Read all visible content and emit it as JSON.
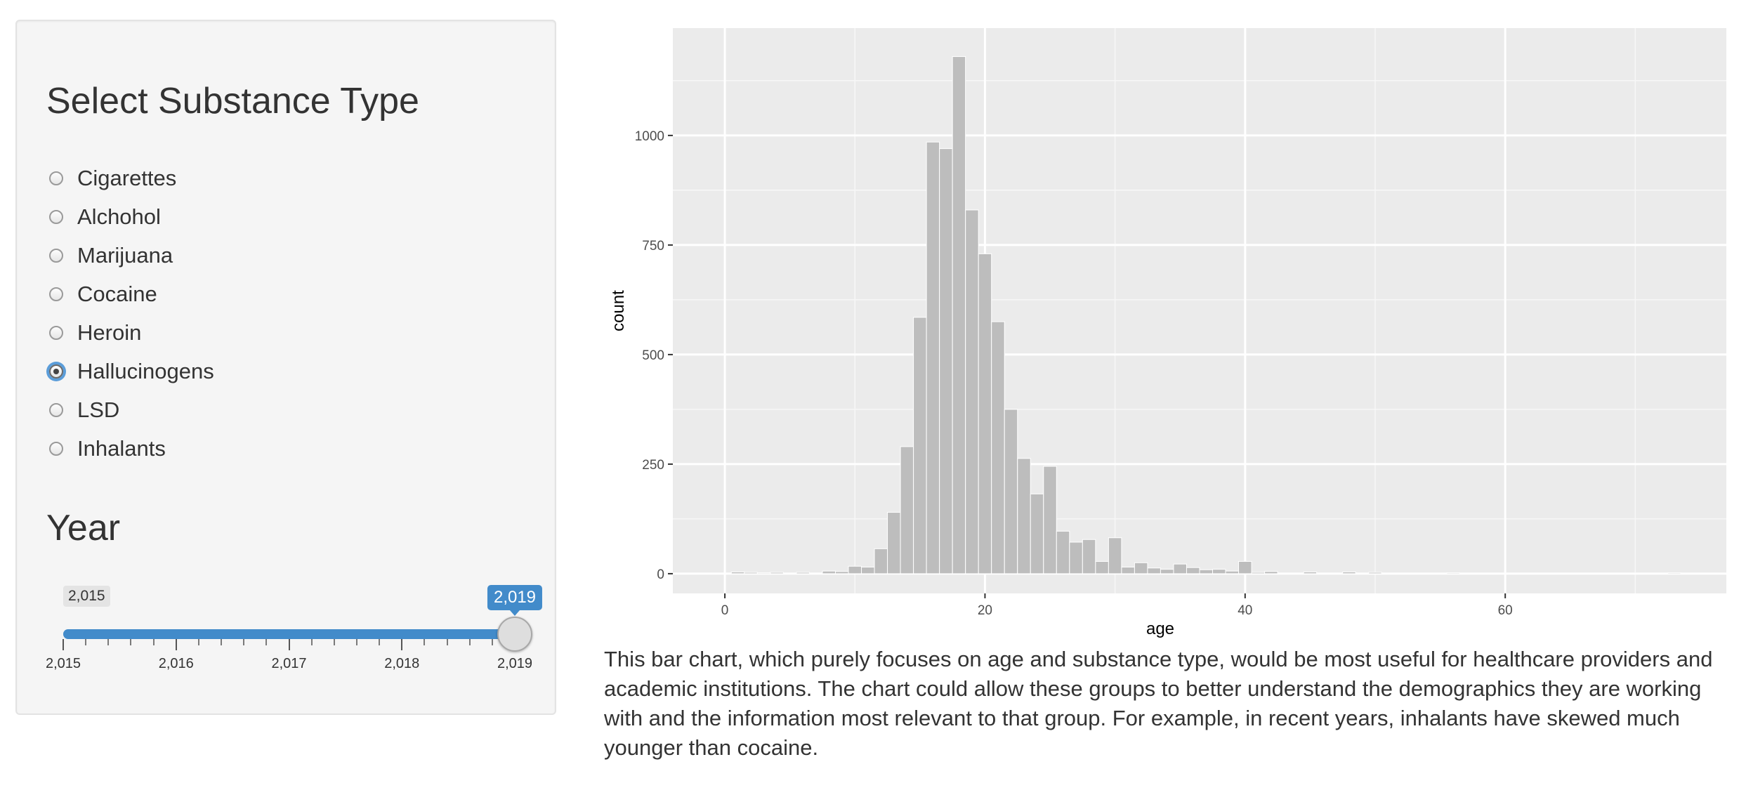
{
  "sidebar": {
    "radio_title": "Select Substance Type",
    "options": [
      {
        "label": "Cigarettes",
        "selected": false
      },
      {
        "label": "Alchohol",
        "selected": false
      },
      {
        "label": "Marijuana",
        "selected": false
      },
      {
        "label": "Cocaine",
        "selected": false
      },
      {
        "label": "Heroin",
        "selected": false
      },
      {
        "label": "Hallucinogens",
        "selected": true
      },
      {
        "label": "LSD",
        "selected": false
      },
      {
        "label": "Inhalants",
        "selected": false
      }
    ],
    "slider": {
      "title": "Year",
      "min": 2015,
      "max": 2019,
      "value": 2019,
      "min_label": "2,015",
      "value_label": "2,019",
      "tick_labels": [
        "2,015",
        "2,016",
        "2,017",
        "2,018",
        "2,019"
      ],
      "accent_color": "#428bca"
    }
  },
  "chart_data": {
    "type": "bar",
    "title": "",
    "xlabel": "age",
    "ylabel": "count",
    "xlim": [
      -4,
      77
    ],
    "ylim": [
      -45,
      1245
    ],
    "x_ticks": [
      0,
      20,
      40,
      60
    ],
    "y_ticks": [
      0,
      250,
      500,
      750,
      1000
    ],
    "x_tick_labels": [
      "0",
      "20",
      "40",
      "60"
    ],
    "y_tick_labels": [
      "0",
      "250",
      "500",
      "750",
      "1000"
    ],
    "grid": true,
    "bin_width": 1,
    "bar_color": "#bdbdbd",
    "panel_color": "#ebebeb",
    "x": [
      1,
      2,
      3,
      4,
      5,
      6,
      7,
      8,
      9,
      10,
      11,
      12,
      13,
      14,
      15,
      16,
      17,
      18,
      19,
      20,
      21,
      22,
      23,
      24,
      25,
      26,
      27,
      28,
      29,
      30,
      31,
      32,
      33,
      34,
      35,
      36,
      37,
      38,
      39,
      40,
      41,
      42,
      43,
      44,
      45,
      46,
      47,
      48,
      49,
      50,
      51,
      52,
      53,
      54,
      55,
      56,
      57,
      58,
      59,
      60,
      61,
      62,
      63,
      64,
      65,
      66,
      67,
      68,
      69,
      70,
      71,
      72,
      73
    ],
    "values": [
      4,
      3,
      2,
      3,
      1,
      3,
      1,
      6,
      5,
      17,
      15,
      57,
      140,
      290,
      585,
      985,
      970,
      1180,
      830,
      730,
      575,
      375,
      263,
      182,
      245,
      97,
      72,
      78,
      28,
      82,
      15,
      25,
      13,
      10,
      22,
      14,
      9,
      10,
      6,
      28,
      3,
      5,
      1,
      1,
      4,
      1,
      1,
      4,
      1,
      3,
      1,
      1,
      1,
      1,
      1,
      2,
      1,
      1,
      1,
      1,
      1,
      1,
      1,
      1,
      1,
      1,
      1,
      1,
      1,
      1,
      1,
      1,
      2
    ]
  },
  "description": "This bar chart, which purely focuses on age and substance type, would be most useful for healthcare providers and academic institutions. The chart could allow these groups to better understand the demographics they are working with and the information most relevant to that group. For example, in recent years, inhalants have skewed much younger than cocaine."
}
